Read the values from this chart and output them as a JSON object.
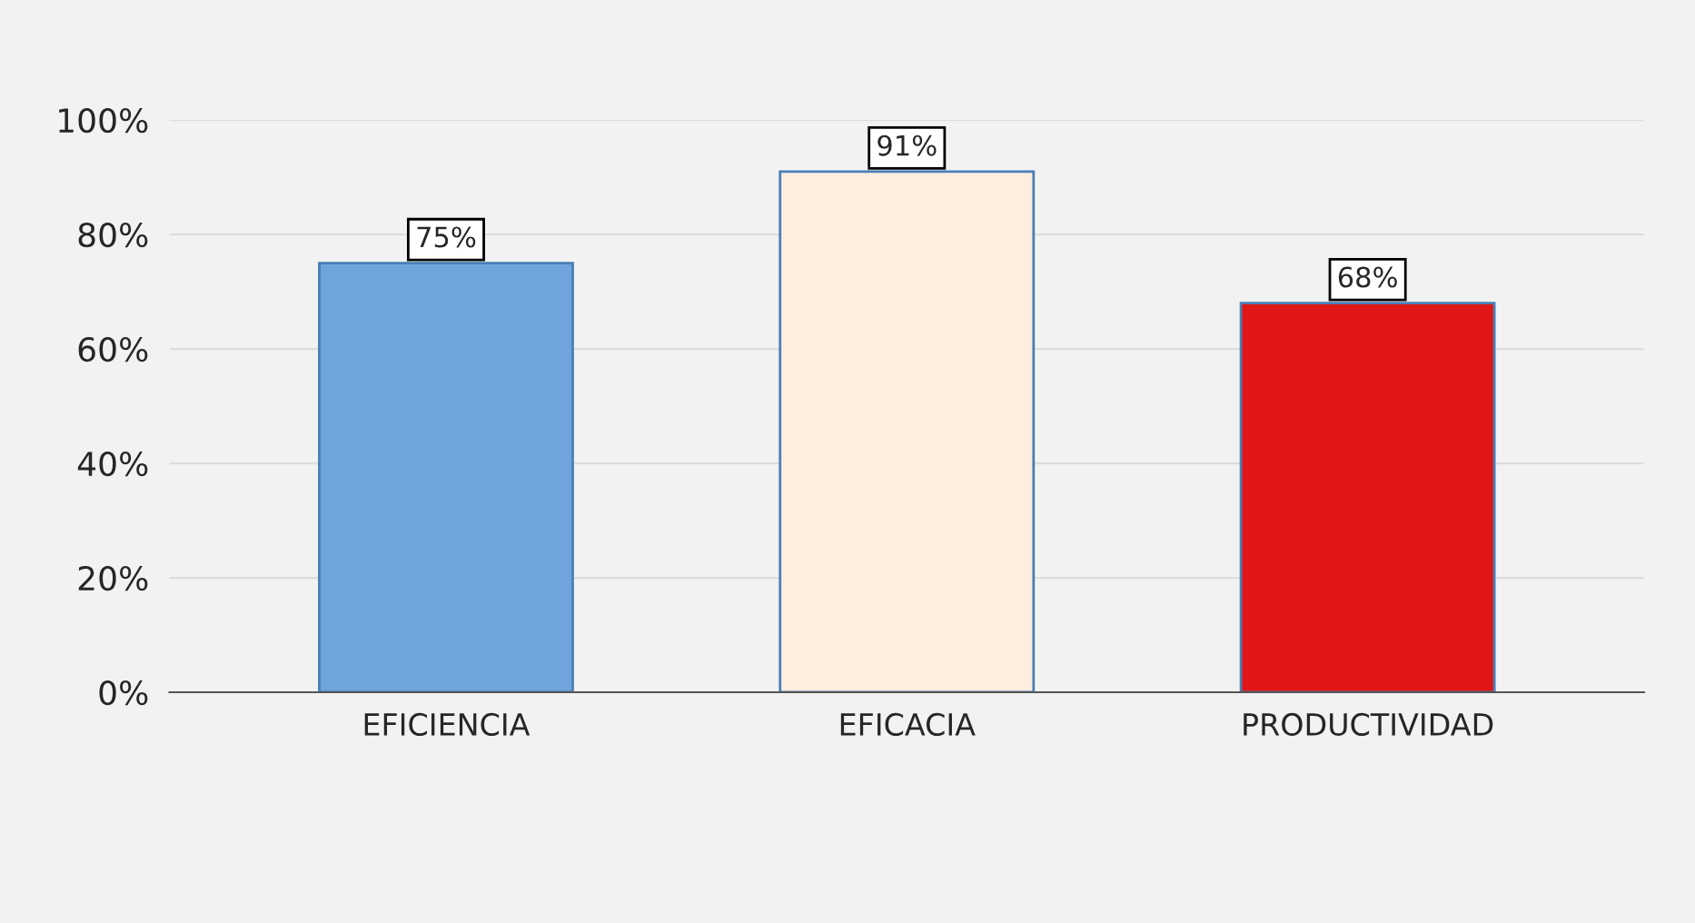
{
  "chart_data": {
    "type": "bar",
    "categories": [
      "EFICIENCIA",
      "EFICACIA",
      "PRODUCTIVIDAD"
    ],
    "values": [
      75,
      91,
      68
    ],
    "colors": [
      "#6fa5dc",
      "#fdeee0",
      "#e01515"
    ],
    "value_labels": [
      "75%",
      "91%",
      "68%"
    ],
    "ylim": [
      0,
      100
    ],
    "yticks": [
      {
        "value": 0,
        "label": "0%"
      },
      {
        "value": 20,
        "label": "20%"
      },
      {
        "value": 40,
        "label": "40%"
      },
      {
        "value": 60,
        "label": "60%"
      },
      {
        "value": 80,
        "label": "80%"
      },
      {
        "value": 100,
        "label": "100%"
      }
    ],
    "grid": "y"
  }
}
